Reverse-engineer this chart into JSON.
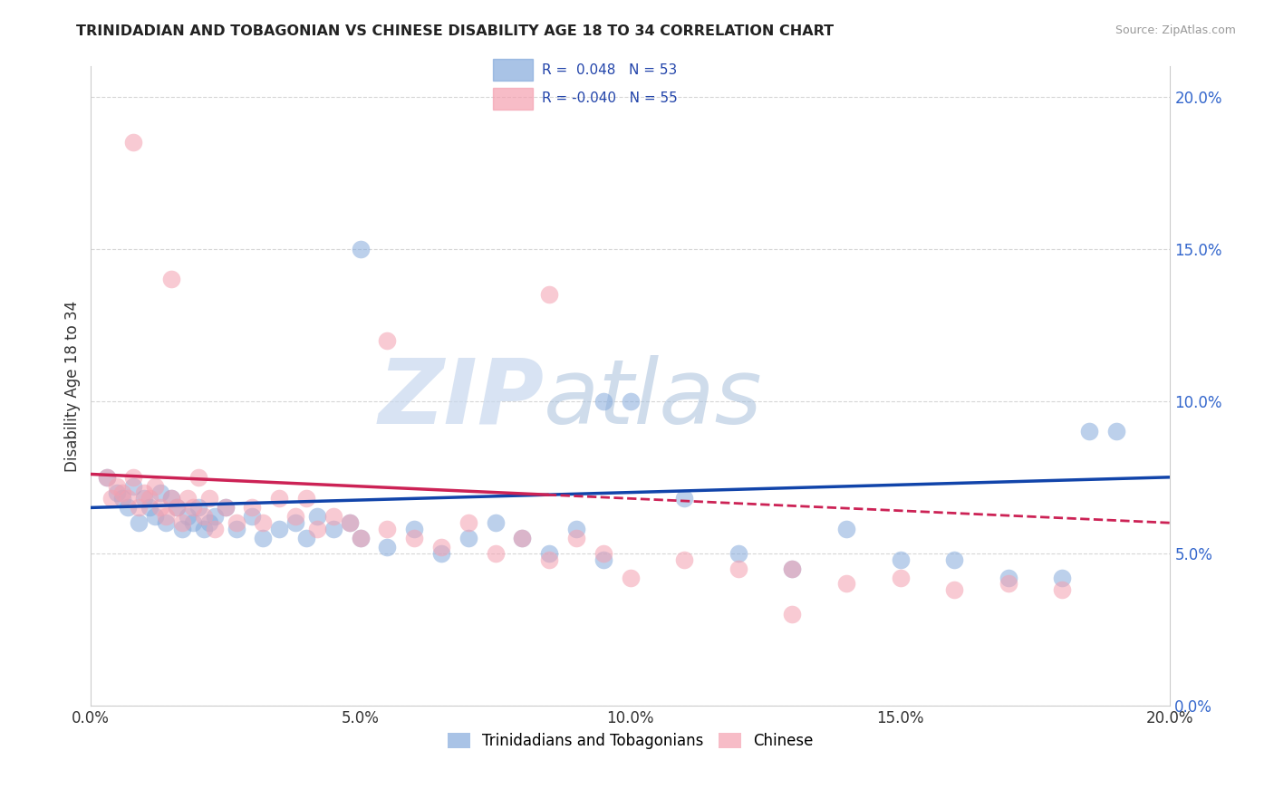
{
  "title": "TRINIDADIAN AND TOBAGONIAN VS CHINESE DISABILITY AGE 18 TO 34 CORRELATION CHART",
  "source": "Source: ZipAtlas.com",
  "ylabel": "Disability Age 18 to 34",
  "xlim": [
    0.0,
    0.2
  ],
  "ylim": [
    0.0,
    0.21
  ],
  "xticks": [
    0.0,
    0.05,
    0.1,
    0.15,
    0.2
  ],
  "yticks": [
    0.0,
    0.05,
    0.1,
    0.15,
    0.2
  ],
  "xticklabels": [
    "0.0%",
    "5.0%",
    "10.0%",
    "15.0%",
    "20.0%"
  ],
  "yticklabels": [
    "0.0%",
    "5.0%",
    "10.0%",
    "15.0%",
    "20.0%"
  ],
  "blue_color": "#85AADC",
  "pink_color": "#F4A0B0",
  "blue_line_color": "#1144AA",
  "pink_line_color": "#CC2255",
  "legend_label_blue": "Trinidadians and Tobagonians",
  "legend_label_pink": "Chinese",
  "watermark_zip": "ZIP",
  "watermark_atlas": "atlas",
  "blue_R": 0.048,
  "blue_N": 53,
  "pink_R": -0.04,
  "pink_N": 55,
  "blue_scatter_x": [
    0.003,
    0.005,
    0.006,
    0.007,
    0.008,
    0.009,
    0.01,
    0.011,
    0.012,
    0.013,
    0.014,
    0.015,
    0.016,
    0.017,
    0.018,
    0.019,
    0.02,
    0.021,
    0.022,
    0.023,
    0.025,
    0.027,
    0.03,
    0.032,
    0.035,
    0.038,
    0.04,
    0.042,
    0.045,
    0.048,
    0.05,
    0.055,
    0.06,
    0.065,
    0.07,
    0.075,
    0.08,
    0.085,
    0.09,
    0.095,
    0.1,
    0.11,
    0.12,
    0.13,
    0.14,
    0.15,
    0.16,
    0.17,
    0.18,
    0.19,
    0.05,
    0.095,
    0.185
  ],
  "blue_scatter_y": [
    0.075,
    0.07,
    0.068,
    0.065,
    0.072,
    0.06,
    0.068,
    0.065,
    0.062,
    0.07,
    0.06,
    0.068,
    0.065,
    0.058,
    0.062,
    0.06,
    0.065,
    0.058,
    0.06,
    0.062,
    0.065,
    0.058,
    0.062,
    0.055,
    0.058,
    0.06,
    0.055,
    0.062,
    0.058,
    0.06,
    0.055,
    0.052,
    0.058,
    0.05,
    0.055,
    0.06,
    0.055,
    0.05,
    0.058,
    0.048,
    0.1,
    0.068,
    0.05,
    0.045,
    0.058,
    0.048,
    0.048,
    0.042,
    0.042,
    0.09,
    0.15,
    0.1,
    0.09
  ],
  "pink_scatter_x": [
    0.003,
    0.004,
    0.005,
    0.006,
    0.007,
    0.008,
    0.009,
    0.01,
    0.011,
    0.012,
    0.013,
    0.014,
    0.015,
    0.016,
    0.017,
    0.018,
    0.019,
    0.02,
    0.021,
    0.022,
    0.023,
    0.025,
    0.027,
    0.03,
    0.032,
    0.035,
    0.038,
    0.04,
    0.042,
    0.045,
    0.048,
    0.05,
    0.055,
    0.06,
    0.065,
    0.07,
    0.075,
    0.08,
    0.085,
    0.09,
    0.095,
    0.1,
    0.11,
    0.12,
    0.13,
    0.14,
    0.15,
    0.16,
    0.17,
    0.18,
    0.008,
    0.015,
    0.055,
    0.085,
    0.13
  ],
  "pink_scatter_y": [
    0.075,
    0.068,
    0.072,
    0.07,
    0.068,
    0.075,
    0.065,
    0.07,
    0.068,
    0.072,
    0.065,
    0.062,
    0.068,
    0.065,
    0.06,
    0.068,
    0.065,
    0.075,
    0.062,
    0.068,
    0.058,
    0.065,
    0.06,
    0.065,
    0.06,
    0.068,
    0.062,
    0.068,
    0.058,
    0.062,
    0.06,
    0.055,
    0.058,
    0.055,
    0.052,
    0.06,
    0.05,
    0.055,
    0.048,
    0.055,
    0.05,
    0.042,
    0.048,
    0.045,
    0.045,
    0.04,
    0.042,
    0.038,
    0.04,
    0.038,
    0.185,
    0.14,
    0.12,
    0.135,
    0.03
  ],
  "grid_color": "#CCCCCC",
  "background_color": "#FFFFFF"
}
